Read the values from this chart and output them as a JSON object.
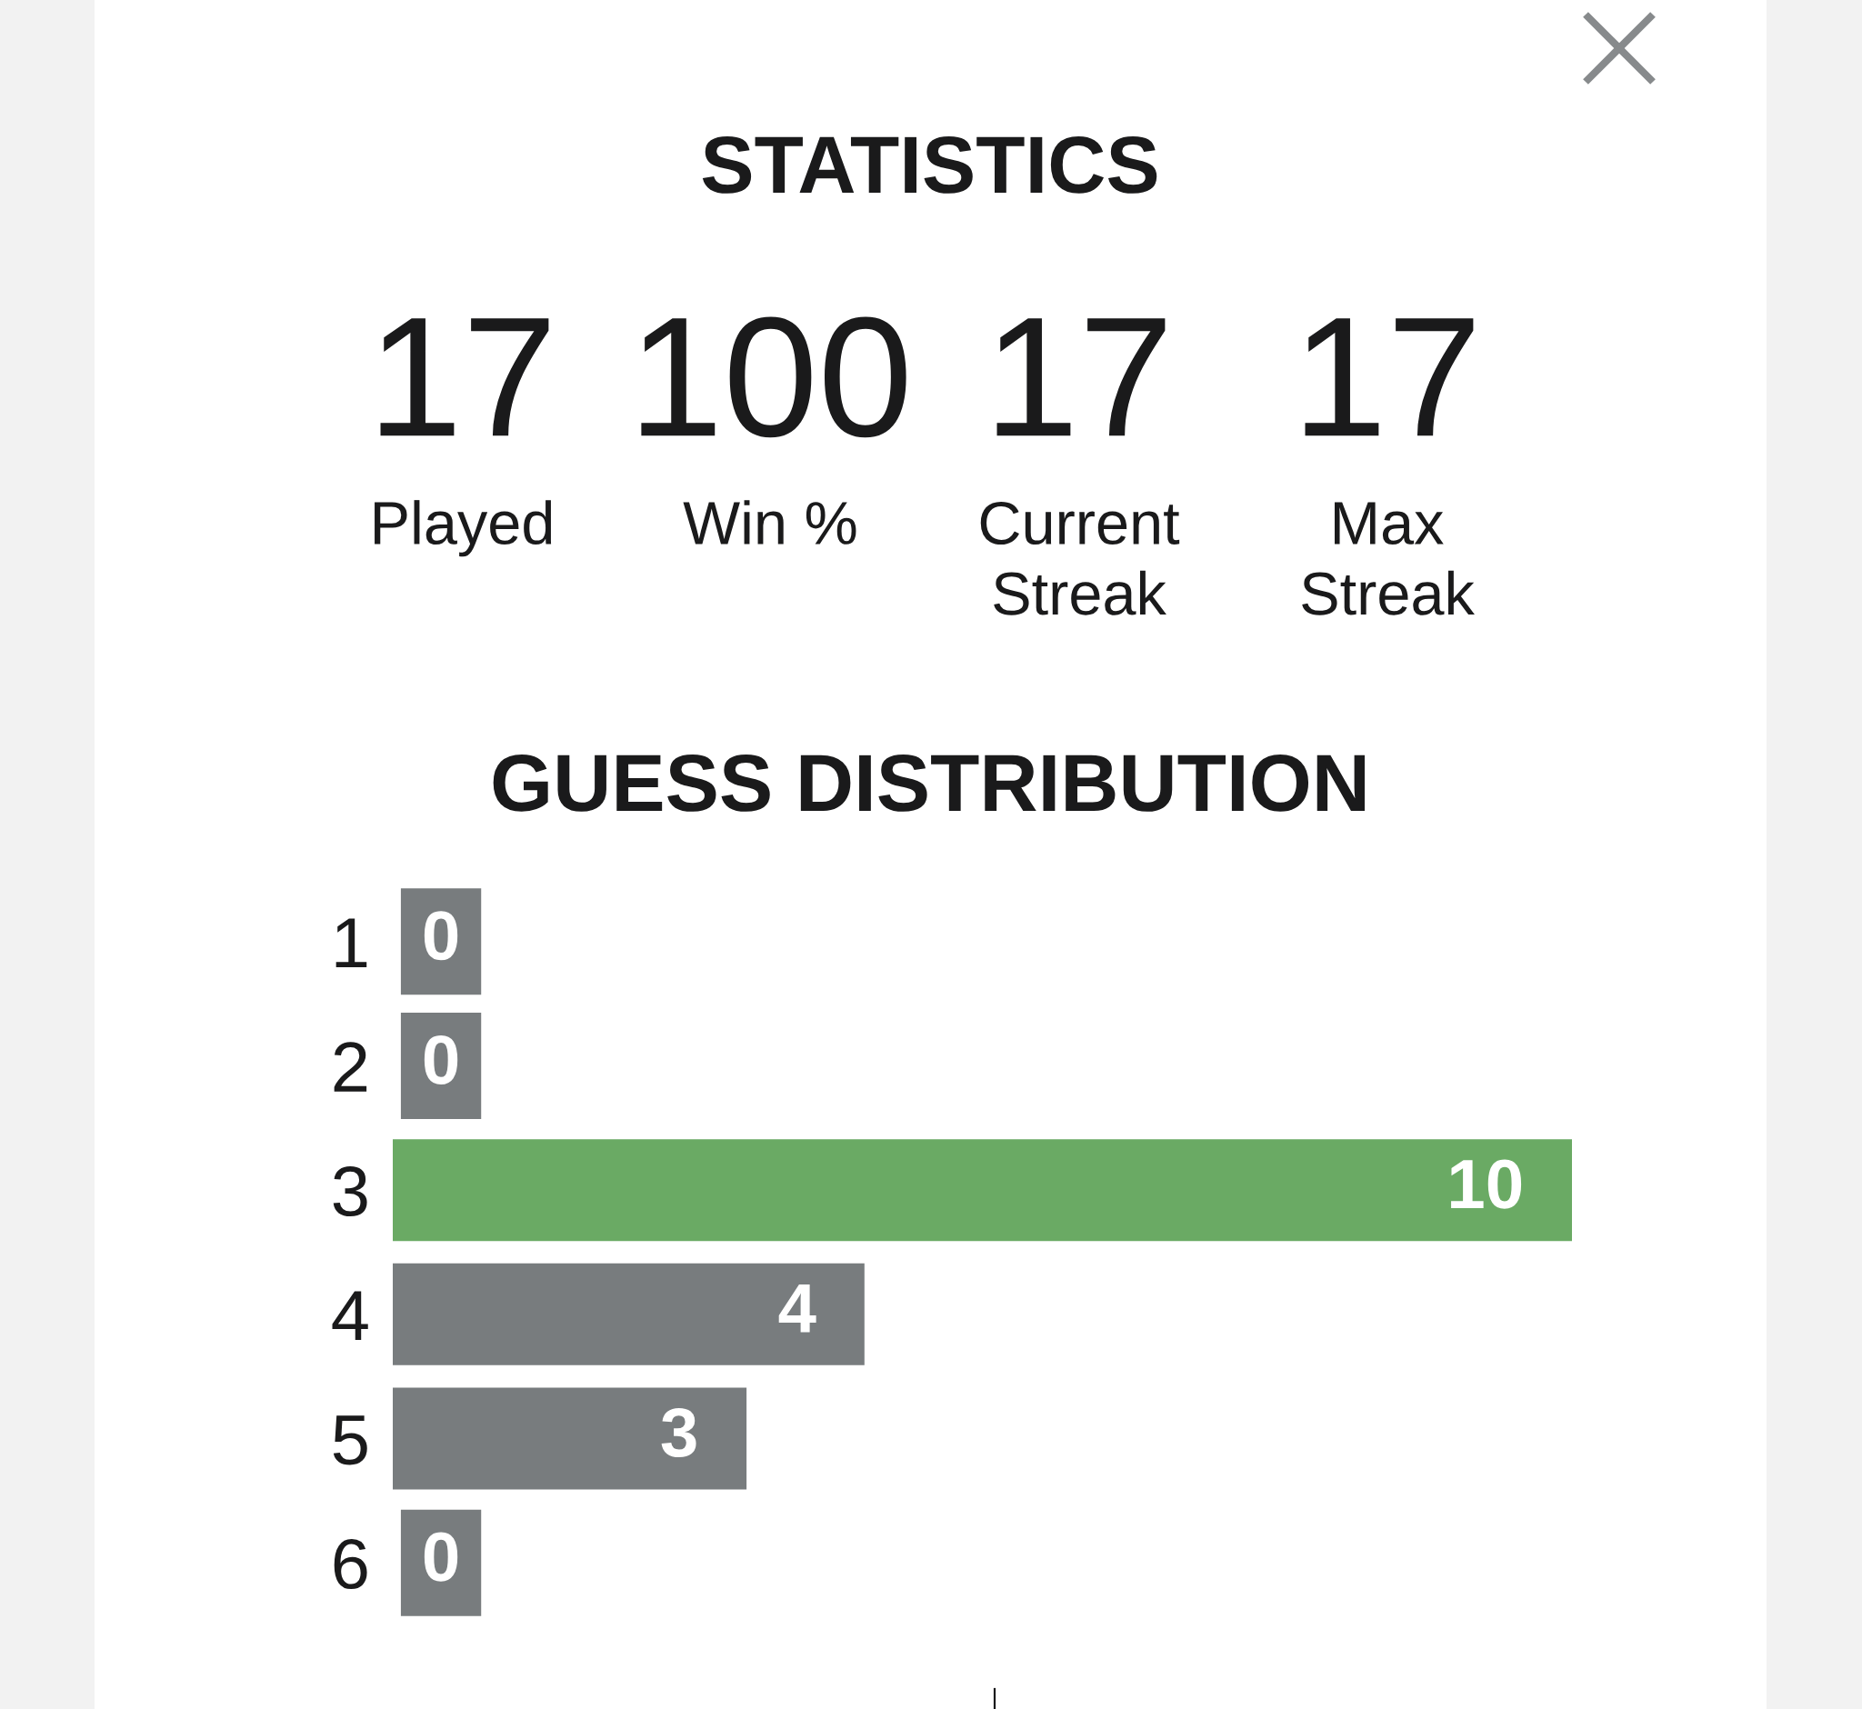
{
  "chart_data": [
    {
      "type": "other",
      "title": "STATISTICS",
      "categories": [
        "Played",
        "Win %",
        "Current\nStreak",
        "Max\nStreak"
      ],
      "values": [
        17,
        100,
        17,
        17
      ],
      "data_labels": true
    },
    {
      "type": "bar",
      "orientation": "horizontal",
      "title": "GUESS DISTRIBUTION",
      "categories": [
        "1",
        "2",
        "3",
        "4",
        "5",
        "6"
      ],
      "values": [
        0,
        0,
        10,
        4,
        3,
        0
      ],
      "colors": [
        "#787c7e",
        "#787c7e",
        "#6aaa64",
        "#787c7e",
        "#787c7e",
        "#787c7e"
      ],
      "data_labels": true
    }
  ]
}
